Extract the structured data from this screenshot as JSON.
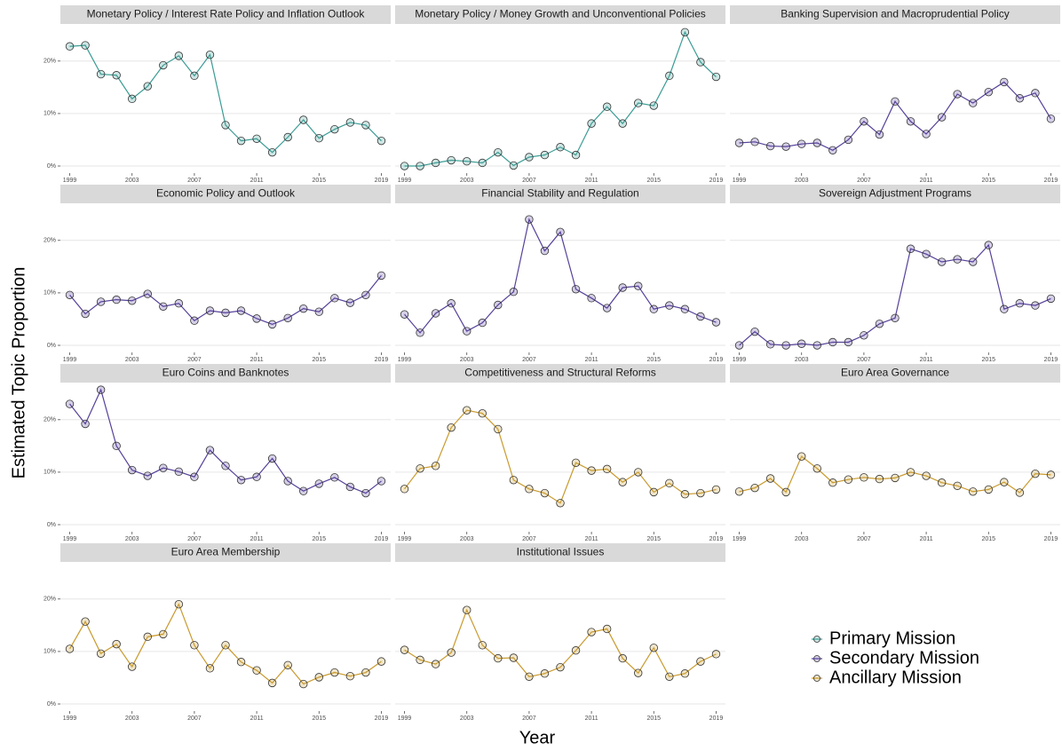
{
  "x_label": "Year",
  "y_label": "Estimated Topic Proportion",
  "ylim": [
    -1.35,
    26.9
  ],
  "yticks": [
    {
      "value": 0,
      "label": "0%"
    },
    {
      "value": 10,
      "label": "10%"
    },
    {
      "value": 20,
      "label": "20%"
    }
  ],
  "grid": true,
  "legend": {
    "position": "right",
    "entries": [
      {
        "name": "Primary Mission",
        "color": "#3b9c95"
      },
      {
        "name": "Secondary Mission",
        "color": "#56409a"
      },
      {
        "name": "Ancillary Mission",
        "color": "#c99a2e"
      }
    ]
  },
  "chart_data": [
    {
      "type": "line",
      "title": "Monetary Policy / Interest Rate Policy and Inflation Outlook",
      "color": "#3b9c95",
      "x": [
        1999,
        2000,
        2001,
        2002,
        2003,
        2004,
        2005,
        2006,
        2007,
        2008,
        2009,
        2010,
        2011,
        2012,
        2013,
        2014,
        2015,
        2016,
        2017,
        2018,
        2019
      ],
      "values": [
        22.8,
        23.0,
        17.5,
        17.3,
        12.8,
        15.2,
        19.2,
        21.0,
        17.2,
        21.2,
        7.8,
        4.8,
        5.2,
        2.6,
        5.5,
        8.8,
        5.3,
        7.0,
        8.3,
        7.8,
        4.8
      ],
      "xlim": [
        1998.4,
        2019.6
      ],
      "xticks": [
        1999,
        2003,
        2007,
        2011,
        2015,
        2019
      ]
    },
    {
      "type": "line",
      "title": "Monetary Policy / Money Growth and Unconventional Policies",
      "color": "#3b9c95",
      "x": [
        1999,
        2000,
        2001,
        2002,
        2003,
        2004,
        2005,
        2006,
        2007,
        2008,
        2009,
        2010,
        2011,
        2012,
        2013,
        2014,
        2015,
        2016,
        2017,
        2018,
        2019
      ],
      "values": [
        0,
        0,
        0.6,
        1.1,
        0.9,
        0.6,
        2.6,
        0.1,
        1.7,
        2.1,
        3.6,
        2.1,
        8.1,
        11.3,
        8.1,
        12.0,
        11.5,
        17.2,
        25.5,
        19.8,
        17.0
      ],
      "xlim": [
        1998.4,
        2019.6
      ],
      "xticks": [
        1999,
        2003,
        2007,
        2011,
        2015,
        2019
      ]
    },
    {
      "type": "line",
      "title": "Banking Supervision and Macroprudential Policy",
      "color": "#56409a",
      "x": [
        1999,
        2000,
        2001,
        2002,
        2003,
        2004,
        2005,
        2006,
        2007,
        2008,
        2009,
        2010,
        2011,
        2012,
        2013,
        2014,
        2015,
        2016,
        2017,
        2018,
        2019
      ],
      "values": [
        4.4,
        4.6,
        3.8,
        3.7,
        4.2,
        4.4,
        3.0,
        5.0,
        8.5,
        6.0,
        12.3,
        8.5,
        6.1,
        9.3,
        13.7,
        12.0,
        14.1,
        16.0,
        12.9,
        13.9,
        9.0
      ],
      "xlim": [
        1998.4,
        2019.6
      ],
      "xticks": [
        1999,
        2003,
        2007,
        2011,
        2015,
        2019
      ]
    },
    {
      "type": "line",
      "title": "Economic Policy and Outlook",
      "color": "#56409a",
      "x": [
        1999,
        2000,
        2001,
        2002,
        2003,
        2004,
        2005,
        2006,
        2007,
        2008,
        2009,
        2010,
        2011,
        2012,
        2013,
        2014,
        2015,
        2016,
        2017,
        2018,
        2019
      ],
      "values": [
        9.6,
        6.0,
        8.3,
        8.7,
        8.5,
        9.8,
        7.4,
        8.0,
        4.7,
        6.6,
        6.2,
        6.6,
        5.1,
        4.0,
        5.2,
        7.0,
        6.4,
        9.0,
        8.1,
        9.6,
        13.3
      ],
      "xlim": [
        1998.4,
        2019.6
      ],
      "xticks": [
        1999,
        2003,
        2007,
        2011,
        2015,
        2019
      ]
    },
    {
      "type": "line",
      "title": "Financial Stability and Regulation",
      "color": "#56409a",
      "x": [
        1999,
        2000,
        2001,
        2002,
        2003,
        2004,
        2005,
        2006,
        2007,
        2008,
        2009,
        2010,
        2011,
        2012,
        2013,
        2014,
        2015,
        2016,
        2017,
        2018,
        2019
      ],
      "values": [
        5.9,
        2.4,
        6.1,
        8.0,
        2.7,
        4.3,
        7.7,
        10.2,
        24.0,
        18.0,
        21.6,
        10.7,
        9.0,
        7.1,
        11.0,
        11.3,
        6.9,
        7.6,
        6.9,
        5.5,
        4.4
      ],
      "xlim": [
        1998.4,
        2019.6
      ],
      "xticks": [
        1999,
        2003,
        2007,
        2011,
        2015,
        2019
      ]
    },
    {
      "type": "line",
      "title": "Sovereign Adjustment Programs",
      "color": "#56409a",
      "x": [
        1999,
        2000,
        2001,
        2002,
        2003,
        2004,
        2005,
        2006,
        2007,
        2008,
        2009,
        2010,
        2011,
        2012,
        2013,
        2014,
        2015,
        2016,
        2017,
        2018,
        2019
      ],
      "values": [
        0,
        2.6,
        0.2,
        0,
        0.3,
        0,
        0.6,
        0.6,
        1.9,
        4.1,
        5.2,
        18.4,
        17.4,
        15.9,
        16.4,
        15.9,
        19.1,
        6.9,
        8.0,
        7.6,
        8.9
      ],
      "xlim": [
        1998.4,
        2019.6
      ],
      "xticks": [
        1999,
        2003,
        2007,
        2011,
        2015,
        2019
      ]
    },
    {
      "type": "line",
      "title": "Euro Coins and Banknotes",
      "color": "#56409a",
      "x": [
        1999,
        2000,
        2001,
        2002,
        2003,
        2004,
        2005,
        2006,
        2007,
        2008,
        2009,
        2010,
        2011,
        2012,
        2013,
        2014,
        2015,
        2016,
        2017,
        2018,
        2019
      ],
      "values": [
        23.0,
        19.2,
        25.7,
        15.0,
        10.4,
        9.3,
        10.8,
        10.1,
        9.1,
        14.2,
        11.2,
        8.5,
        9.1,
        12.6,
        8.3,
        6.4,
        7.8,
        9.0,
        7.2,
        6.0,
        8.3
      ],
      "xlim": [
        1998.4,
        2019.6
      ],
      "xticks": [
        1999,
        2003,
        2007,
        2011,
        2015,
        2019
      ]
    },
    {
      "type": "line",
      "title": "Competitiveness and Structural Reforms",
      "color": "#c99a2e",
      "x": [
        1999,
        2000,
        2001,
        2002,
        2003,
        2004,
        2005,
        2006,
        2007,
        2008,
        2009,
        2010,
        2011,
        2012,
        2013,
        2014,
        2015,
        2016,
        2017,
        2018,
        2019
      ],
      "values": [
        6.8,
        10.7,
        11.2,
        18.5,
        21.8,
        21.2,
        18.2,
        8.5,
        6.8,
        6.0,
        4.1,
        11.8,
        10.3,
        10.6,
        8.1,
        10.0,
        6.2,
        7.9,
        5.8,
        6.0,
        6.7
      ],
      "xlim": [
        1998.4,
        2019.6
      ],
      "xticks": [
        1999,
        2003,
        2007,
        2011,
        2015,
        2019
      ]
    },
    {
      "type": "line",
      "title": "Euro Area Governance",
      "color": "#c99a2e",
      "x": [
        1999,
        2000,
        2001,
        2002,
        2003,
        2004,
        2005,
        2006,
        2007,
        2008,
        2009,
        2010,
        2011,
        2012,
        2013,
        2014,
        2015,
        2016,
        2017,
        2018,
        2019
      ],
      "values": [
        6.3,
        7.0,
        8.8,
        6.2,
        13.0,
        10.7,
        8.0,
        8.6,
        9.0,
        8.7,
        8.9,
        10.0,
        9.3,
        8.0,
        7.4,
        6.3,
        6.7,
        8.1,
        6.1,
        9.7,
        9.5
      ],
      "xlim": [
        1998.4,
        2019.6
      ],
      "xticks": [
        1999,
        2003,
        2007,
        2011,
        2015,
        2019
      ]
    },
    {
      "type": "line",
      "title": "Euro Area Membership",
      "color": "#c99a2e",
      "x": [
        1999,
        2000,
        2001,
        2002,
        2003,
        2004,
        2005,
        2006,
        2007,
        2008,
        2009,
        2010,
        2011,
        2012,
        2013,
        2014,
        2015,
        2016,
        2017,
        2018,
        2019
      ],
      "values": [
        10.5,
        15.7,
        9.6,
        11.4,
        7.1,
        12.8,
        13.3,
        19.0,
        11.2,
        6.8,
        11.2,
        8.0,
        6.4,
        4.0,
        7.4,
        3.8,
        5.1,
        6.0,
        5.3,
        6.0,
        8.1
      ],
      "xlim": [
        1998.4,
        2019.6
      ],
      "xticks": [
        1999,
        2003,
        2007,
        2011,
        2015,
        2019
      ]
    },
    {
      "type": "line",
      "title": "Institutional Issues",
      "color": "#c99a2e",
      "x": [
        1999,
        2000,
        2001,
        2002,
        2003,
        2004,
        2005,
        2006,
        2007,
        2008,
        2009,
        2010,
        2011,
        2012,
        2013,
        2014,
        2015,
        2016,
        2017,
        2018,
        2019
      ],
      "values": [
        10.3,
        8.4,
        7.6,
        9.8,
        17.9,
        11.2,
        8.7,
        8.8,
        5.2,
        5.8,
        7.0,
        10.2,
        13.7,
        14.3,
        8.7,
        5.9,
        10.7,
        5.2,
        5.8,
        8.1,
        9.5
      ],
      "xlim": [
        1998.4,
        2019.6
      ],
      "xticks": [
        1999,
        2003,
        2007,
        2011,
        2015,
        2019
      ]
    }
  ]
}
